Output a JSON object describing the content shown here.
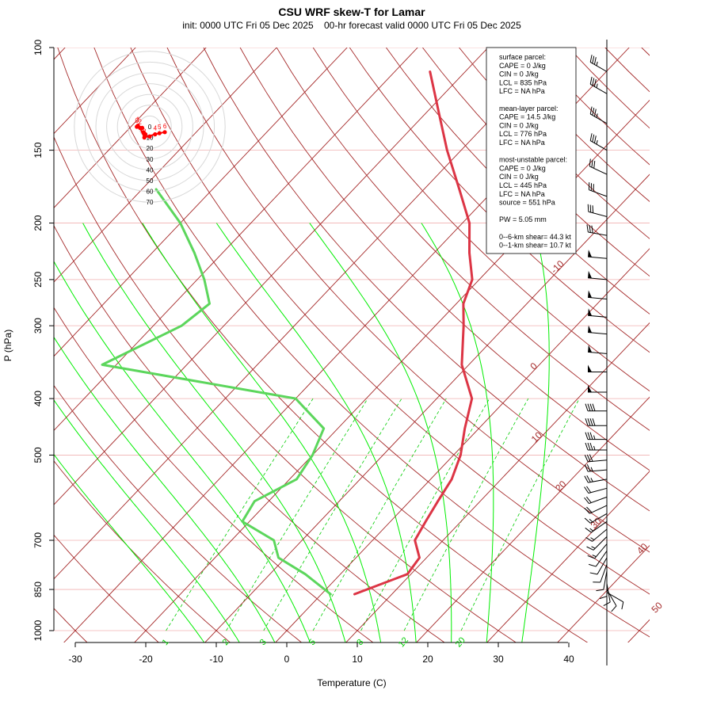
{
  "header": {
    "title": "CSU WRF skew-T for Lamar",
    "subtitle": "init: 0000 UTC Fri 05 Dec 2025    00-hr forecast valid 0000 UTC Fri 05 Dec 2025"
  },
  "axes": {
    "xlabel": "Temperature (C)",
    "ylabel": "P (hPa)"
  },
  "colors": {
    "temperature": "#dc3545",
    "dewpoint": "#5cd65c",
    "isotherm": "#a52a2a",
    "dry_adiabat": "#a52a2a",
    "moist_adiabat": "#00ee00",
    "mixing_ratio": "#00cc00",
    "grid": "#f0b0b0",
    "hodograph": "#ff0000"
  },
  "info_box": {
    "lines": [
      "surface parcel:",
      "CAPE = 0 J/kg",
      "CIN = 0 J/kg",
      "LCL = 835 hPa",
      "LFC = NA hPa",
      "",
      "mean-layer parcel:",
      "CAPE = 14.5 J/kg",
      "CIN = 0 J/kg",
      "LCL = 776 hPa",
      "LFC = NA hPa",
      "",
      "most-unstable parcel:",
      "CAPE = 0 J/kg",
      "CIN = 0 J/kg",
      "LCL = 445 hPa",
      "LFC = NA hPa",
      "source = 551 hPa",
      "",
      "PW =  5.05 mm",
      "",
      "0--6-km shear= 44.3 kt",
      "0--1-km shear= 10.7 kt"
    ]
  },
  "hodograph": {
    "ring_labels": [
      "0",
      "10",
      "20",
      "30",
      "40",
      "50",
      "60",
      "70"
    ],
    "ring_values": [
      0,
      10,
      20,
      30,
      40,
      50,
      60,
      70
    ],
    "points": [
      {
        "label": "0",
        "u": -12,
        "v": 0
      },
      {
        "label": "1",
        "u": -11,
        "v": 1
      },
      {
        "label": "2",
        "u": -9,
        "v": -1
      },
      {
        "label": "3",
        "u": -5,
        "v": -10
      },
      {
        "label": "4",
        "u": 5,
        "v": -7
      },
      {
        "label": "5",
        "u": 9,
        "v": -6
      },
      {
        "label": "6",
        "u": 14,
        "v": -5
      },
      {
        "label": "",
        "u": -7,
        "v": -1
      },
      {
        "label": "",
        "u": -6,
        "v": -5
      },
      {
        "label": "",
        "u": -4,
        "v": -7
      },
      {
        "label": "",
        "u": 0,
        "v": -9
      }
    ]
  },
  "chart_data": {
    "type": "line",
    "title": "CSU WRF skew-T for Lamar",
    "xlabel": "Temperature (C)",
    "ylabel": "P (hPa)",
    "x_ticks": [
      "-30",
      "-20",
      "-10",
      "0",
      "10",
      "20",
      "30",
      "40"
    ],
    "y_ticks": [
      "100",
      "150",
      "200",
      "250",
      "300",
      "400",
      "500",
      "700",
      "850",
      "1000"
    ],
    "xlim": [
      -33,
      52
    ],
    "ylim": [
      1050,
      100
    ],
    "y_scale": "log",
    "isotherm_labels": [
      "-10",
      "0",
      "10",
      "20",
      "30",
      "40",
      "50"
    ],
    "mixing_ratio_labels": [
      "1",
      "2",
      "3",
      "5",
      "8",
      "12",
      "20"
    ],
    "series": [
      {
        "name": "temperature",
        "points": [
          [
            4.7,
            866
          ],
          [
            9.5,
            800
          ],
          [
            9,
            750
          ],
          [
            6,
            700
          ],
          [
            5,
            650
          ],
          [
            4,
            600
          ],
          [
            3,
            550
          ],
          [
            1,
            500
          ],
          [
            -2,
            450
          ],
          [
            -5,
            400
          ],
          [
            -11,
            350
          ],
          [
            -16,
            300
          ],
          [
            -19,
            275
          ],
          [
            -21,
            250
          ],
          [
            -25,
            225
          ],
          [
            -29,
            200
          ],
          [
            -35,
            175
          ],
          [
            -42,
            150
          ],
          [
            -48,
            130
          ],
          [
            -55,
            110
          ]
        ]
      },
      {
        "name": "dewpoint",
        "points": [
          [
            1.3,
            866
          ],
          [
            -5,
            800
          ],
          [
            -11,
            750
          ],
          [
            -14,
            700
          ],
          [
            -21,
            650
          ],
          [
            -22,
            600
          ],
          [
            -19,
            550
          ],
          [
            -20,
            500
          ],
          [
            -22,
            450
          ],
          [
            -30,
            400
          ],
          [
            -62,
            350
          ],
          [
            -56,
            300
          ],
          [
            -55,
            275
          ],
          [
            -59,
            250
          ],
          [
            -64,
            225
          ],
          [
            -70,
            200
          ],
          [
            -78,
            175
          ]
        ]
      }
    ],
    "wind_barbs": [
      {
        "p": 110,
        "dir": 300,
        "spd": 35
      },
      {
        "p": 120,
        "dir": 300,
        "spd": 35
      },
      {
        "p": 135,
        "dir": 300,
        "spd": 35
      },
      {
        "p": 150,
        "dir": 300,
        "spd": 35
      },
      {
        "p": 165,
        "dir": 295,
        "spd": 30
      },
      {
        "p": 180,
        "dir": 290,
        "spd": 30
      },
      {
        "p": 195,
        "dir": 285,
        "spd": 30
      },
      {
        "p": 210,
        "dir": 280,
        "spd": 30
      },
      {
        "p": 230,
        "dir": 275,
        "spd": 50
      },
      {
        "p": 250,
        "dir": 275,
        "spd": 50
      },
      {
        "p": 270,
        "dir": 275,
        "spd": 50
      },
      {
        "p": 290,
        "dir": 275,
        "spd": 50
      },
      {
        "p": 310,
        "dir": 275,
        "spd": 50
      },
      {
        "p": 335,
        "dir": 275,
        "spd": 50
      },
      {
        "p": 360,
        "dir": 270,
        "spd": 50
      },
      {
        "p": 390,
        "dir": 270,
        "spd": 50
      },
      {
        "p": 420,
        "dir": 270,
        "spd": 40
      },
      {
        "p": 445,
        "dir": 270,
        "spd": 40
      },
      {
        "p": 470,
        "dir": 270,
        "spd": 35
      },
      {
        "p": 490,
        "dir": 270,
        "spd": 35
      },
      {
        "p": 510,
        "dir": 265,
        "spd": 30
      },
      {
        "p": 530,
        "dir": 265,
        "spd": 25
      },
      {
        "p": 550,
        "dir": 260,
        "spd": 25
      },
      {
        "p": 570,
        "dir": 255,
        "spd": 20
      },
      {
        "p": 590,
        "dir": 250,
        "spd": 20
      },
      {
        "p": 610,
        "dir": 245,
        "spd": 20
      },
      {
        "p": 630,
        "dir": 240,
        "spd": 15
      },
      {
        "p": 650,
        "dir": 235,
        "spd": 15
      },
      {
        "p": 670,
        "dir": 230,
        "spd": 15
      },
      {
        "p": 690,
        "dir": 225,
        "spd": 15
      },
      {
        "p": 710,
        "dir": 220,
        "spd": 15
      },
      {
        "p": 730,
        "dir": 215,
        "spd": 10
      },
      {
        "p": 750,
        "dir": 210,
        "spd": 10
      },
      {
        "p": 770,
        "dir": 200,
        "spd": 10
      },
      {
        "p": 790,
        "dir": 190,
        "spd": 10
      },
      {
        "p": 810,
        "dir": 180,
        "spd": 10
      },
      {
        "p": 830,
        "dir": 170,
        "spd": 10
      },
      {
        "p": 850,
        "dir": 150,
        "spd": 10
      },
      {
        "p": 860,
        "dir": 120,
        "spd": 10
      }
    ]
  }
}
